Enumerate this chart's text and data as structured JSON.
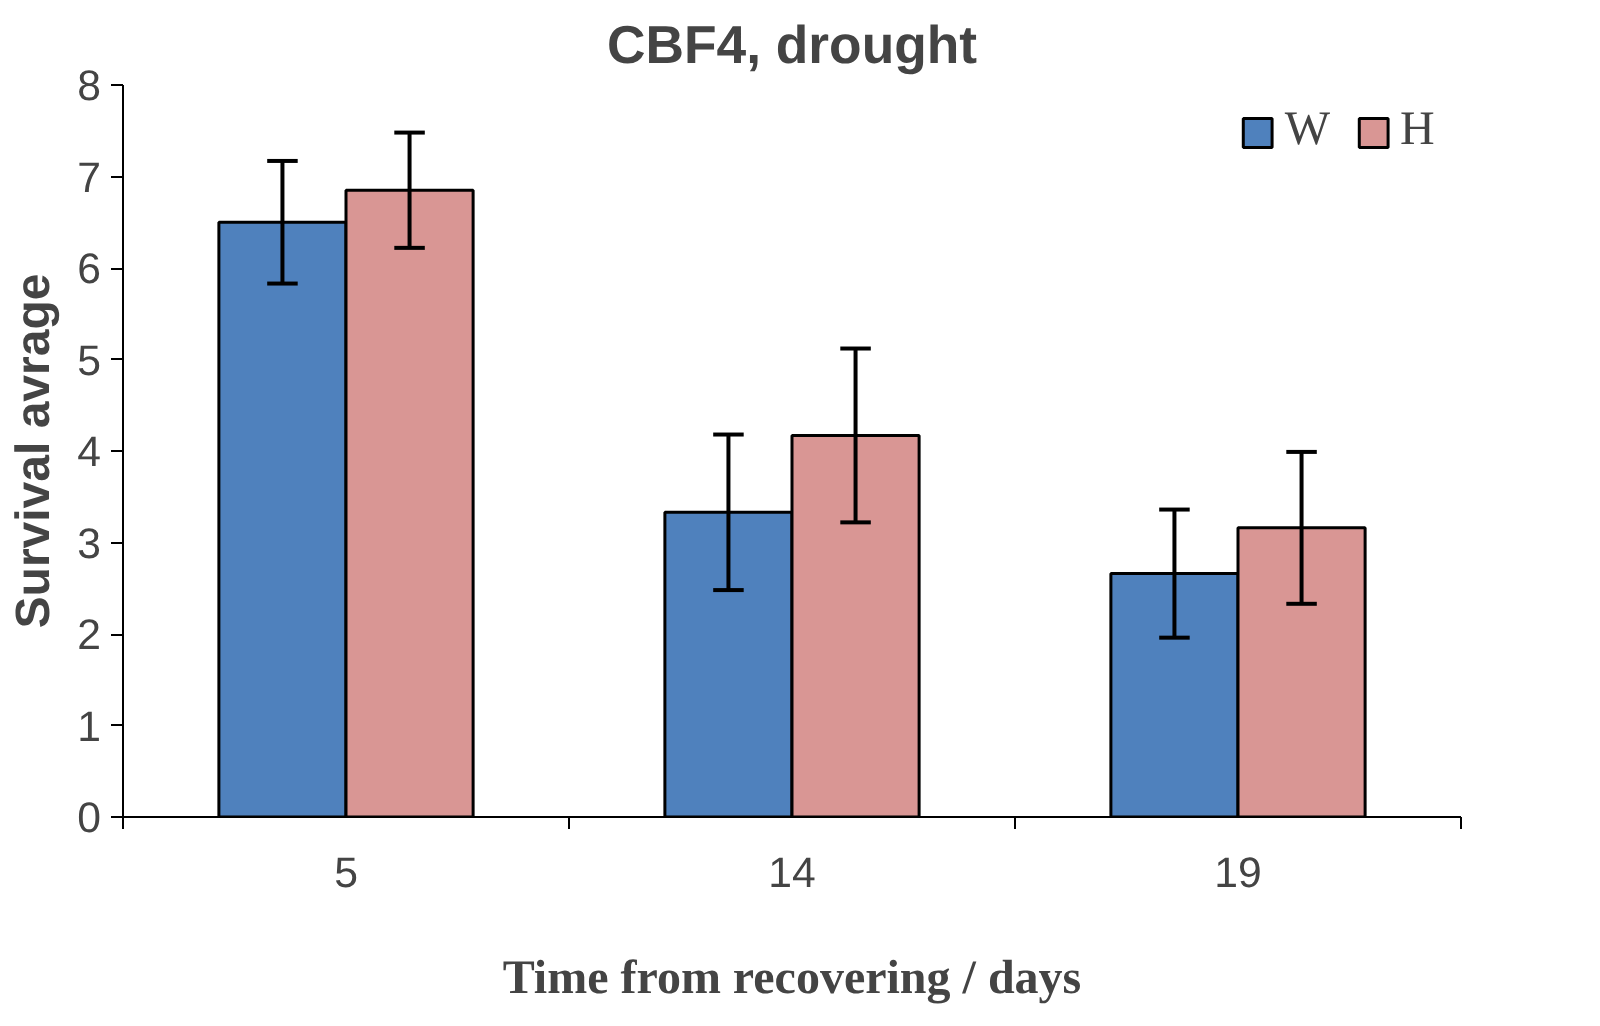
{
  "chart_data": {
    "type": "bar",
    "title": "CBF4, drought",
    "xlabel": "Time from recovering / days",
    "ylabel": "Survival avrage",
    "categories": [
      "5",
      "14",
      "19"
    ],
    "series": [
      {
        "name": "W",
        "color": "#4f81bd",
        "values": [
          6.5,
          3.33,
          2.66
        ],
        "errors": [
          0.67,
          0.85,
          0.7
        ]
      },
      {
        "name": "H",
        "color": "#d99694",
        "values": [
          6.85,
          4.17,
          3.16
        ],
        "errors": [
          0.63,
          0.95,
          0.83
        ]
      }
    ],
    "ylim": [
      0,
      8
    ],
    "yticks": [
      0,
      1,
      2,
      3,
      4,
      5,
      6,
      7,
      8
    ],
    "grid": false,
    "legend": "top right"
  }
}
